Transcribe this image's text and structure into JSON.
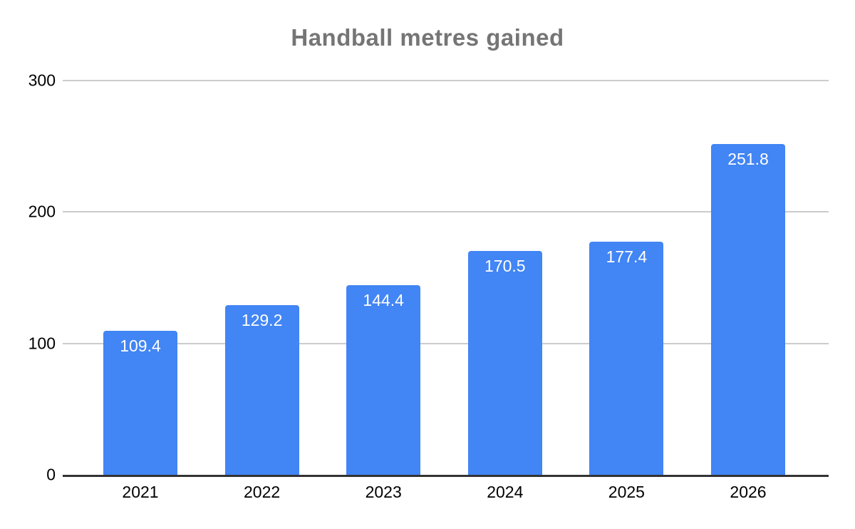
{
  "chart_data": {
    "type": "bar",
    "title": "Handball metres gained",
    "categories": [
      "2021",
      "2022",
      "2023",
      "2024",
      "2025",
      "2026"
    ],
    "values": [
      109.4,
      129.2,
      144.4,
      170.5,
      177.4,
      251.8
    ],
    "xlabel": "",
    "ylabel": "",
    "ylim": [
      0,
      300
    ],
    "yticks": [
      0,
      100,
      200,
      300
    ],
    "grid": true,
    "legend_position": "none",
    "colors": {
      "bar": "#4285f4",
      "bar_value_label": "#ffffff",
      "title": "#757575",
      "gridline": "#cccccc",
      "axis_line": "#333333",
      "tick_label": "#000000"
    }
  }
}
